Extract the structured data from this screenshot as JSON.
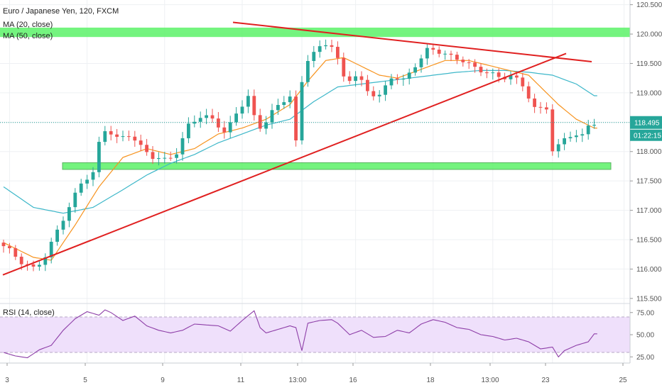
{
  "legend": {
    "main": "Euro / Japanese Yen, 120, FXCM",
    "ma20": "MA (20, close)",
    "ma50": "MA (50, close)",
    "rsi": "RSI (14, close)"
  },
  "price_tag": {
    "price": "118.495",
    "countdown": "01:22:15"
  },
  "colors": {
    "up": "#26a69a",
    "down": "#ef5350",
    "ma20": "#f7931e",
    "ma50": "#3db7c9",
    "rsi": "#8e3fa8",
    "rsi_band": "#efe0fb",
    "zone": "#5cf268",
    "trend": "#e02020"
  },
  "chart_data": [
    {
      "type": "candlestick",
      "title": "Euro / Japanese Yen, 120, FXCM",
      "ylim": [
        115.45,
        120.58
      ],
      "y_ticks": [
        "115.500",
        "116.000",
        "116.500",
        "117.000",
        "117.500",
        "118.000",
        "118.500",
        "119.000",
        "119.500",
        "120.000",
        "120.500"
      ],
      "x_ticks": [
        "3",
        "5",
        "9",
        "11",
        "13:00",
        "16",
        "18",
        "13:00",
        "23",
        "25"
      ],
      "last_price": 118.495,
      "support_zone": [
        117.72,
        117.81
      ],
      "resistance_zone": [
        119.95,
        120.11
      ],
      "trend_lines": [
        {
          "name": "descending",
          "from": [
            120.2
          ],
          "to": [
            119.53
          ]
        },
        {
          "name": "ascending",
          "from": [
            115.9
          ],
          "to": [
            119.67
          ]
        }
      ],
      "close_path": [
        [
          0,
          116.45
        ],
        [
          2,
          116.3
        ],
        [
          4,
          116.1
        ],
        [
          6,
          116.0
        ],
        [
          8,
          116.25
        ],
        [
          10,
          116.7
        ],
        [
          12,
          117.1
        ],
        [
          14,
          117.5
        ],
        [
          16,
          117.65
        ],
        [
          17,
          118.25
        ],
        [
          18,
          118.4
        ],
        [
          20,
          118.2
        ],
        [
          22,
          118.3
        ],
        [
          24,
          118.05
        ],
        [
          26,
          117.9
        ],
        [
          28,
          117.85
        ],
        [
          30,
          118.0
        ],
        [
          32,
          118.5
        ],
        [
          34,
          118.6
        ],
        [
          36,
          118.55
        ],
        [
          38,
          118.3
        ],
        [
          40,
          118.7
        ],
        [
          42,
          118.95
        ],
        [
          43,
          118.5
        ],
        [
          44,
          118.4
        ],
        [
          46,
          118.7
        ],
        [
          48,
          118.9
        ],
        [
          49,
          118.95
        ],
        [
          50,
          117.95
        ],
        [
          51,
          119.5
        ],
        [
          53,
          119.7
        ],
        [
          55,
          119.85
        ],
        [
          56,
          119.8
        ],
        [
          58,
          119.2
        ],
        [
          60,
          119.3
        ],
        [
          62,
          119.0
        ],
        [
          64,
          118.95
        ],
        [
          66,
          119.3
        ],
        [
          68,
          119.2
        ],
        [
          70,
          119.5
        ],
        [
          72,
          119.75
        ],
        [
          74,
          119.7
        ],
        [
          76,
          119.6
        ],
        [
          78,
          119.55
        ],
        [
          80,
          119.4
        ],
        [
          82,
          119.35
        ],
        [
          84,
          119.25
        ],
        [
          86,
          119.3
        ],
        [
          88,
          119.1
        ],
        [
          90,
          118.7
        ],
        [
          92,
          118.75
        ],
        [
          93,
          117.85
        ],
        [
          94,
          118.15
        ],
        [
          96,
          118.3
        ],
        [
          98,
          118.25
        ],
        [
          99,
          118.495
        ]
      ],
      "ma20_path": [
        [
          0,
          116.45
        ],
        [
          5,
          116.2
        ],
        [
          8,
          116.15
        ],
        [
          12,
          116.75
        ],
        [
          16,
          117.4
        ],
        [
          20,
          117.9
        ],
        [
          24,
          118.05
        ],
        [
          28,
          117.95
        ],
        [
          32,
          118.05
        ],
        [
          36,
          118.3
        ],
        [
          40,
          118.4
        ],
        [
          44,
          118.55
        ],
        [
          48,
          118.8
        ],
        [
          51,
          119.2
        ],
        [
          54,
          119.55
        ],
        [
          57,
          119.6
        ],
        [
          60,
          119.45
        ],
        [
          63,
          119.3
        ],
        [
          66,
          119.25
        ],
        [
          70,
          119.4
        ],
        [
          74,
          119.55
        ],
        [
          78,
          119.55
        ],
        [
          82,
          119.45
        ],
        [
          86,
          119.35
        ],
        [
          88,
          119.3
        ],
        [
          90,
          119.1
        ],
        [
          93,
          118.8
        ],
        [
          96,
          118.55
        ],
        [
          99,
          118.4
        ]
      ],
      "ma50_path": [
        [
          0,
          117.4
        ],
        [
          5,
          117.05
        ],
        [
          10,
          116.95
        ],
        [
          15,
          117.05
        ],
        [
          20,
          117.35
        ],
        [
          24,
          117.6
        ],
        [
          28,
          117.8
        ],
        [
          32,
          117.95
        ],
        [
          36,
          118.15
        ],
        [
          40,
          118.3
        ],
        [
          44,
          118.45
        ],
        [
          48,
          118.55
        ],
        [
          52,
          118.85
        ],
        [
          56,
          119.1
        ],
        [
          60,
          119.15
        ],
        [
          64,
          119.2
        ],
        [
          68,
          119.25
        ],
        [
          72,
          119.3
        ],
        [
          76,
          119.35
        ],
        [
          80,
          119.38
        ],
        [
          84,
          119.38
        ],
        [
          88,
          119.35
        ],
        [
          92,
          119.3
        ],
        [
          96,
          119.15
        ],
        [
          99,
          118.95
        ]
      ]
    },
    {
      "type": "line",
      "title": "RSI (14, close)",
      "ylim": [
        18,
        82
      ],
      "y_ticks": [
        "25.00",
        "50.00",
        "75.00"
      ],
      "band": [
        30,
        70
      ],
      "values": [
        [
          0,
          30
        ],
        [
          2,
          26
        ],
        [
          4,
          24
        ],
        [
          6,
          33
        ],
        [
          8,
          38
        ],
        [
          10,
          55
        ],
        [
          12,
          68
        ],
        [
          14,
          76
        ],
        [
          16,
          72
        ],
        [
          17,
          78
        ],
        [
          18,
          75
        ],
        [
          20,
          66
        ],
        [
          22,
          71
        ],
        [
          24,
          60
        ],
        [
          26,
          55
        ],
        [
          28,
          52
        ],
        [
          30,
          55
        ],
        [
          32,
          62
        ],
        [
          34,
          61
        ],
        [
          36,
          60
        ],
        [
          38,
          54
        ],
        [
          40,
          66
        ],
        [
          42,
          77
        ],
        [
          43,
          58
        ],
        [
          44,
          52
        ],
        [
          46,
          56
        ],
        [
          48,
          60
        ],
        [
          49,
          58
        ],
        [
          50,
          32
        ],
        [
          51,
          63
        ],
        [
          53,
          66
        ],
        [
          55,
          67
        ],
        [
          56,
          63
        ],
        [
          58,
          50
        ],
        [
          60,
          55
        ],
        [
          62,
          47
        ],
        [
          64,
          48
        ],
        [
          66,
          55
        ],
        [
          68,
          52
        ],
        [
          70,
          62
        ],
        [
          72,
          67
        ],
        [
          74,
          64
        ],
        [
          76,
          58
        ],
        [
          78,
          56
        ],
        [
          80,
          50
        ],
        [
          82,
          48
        ],
        [
          84,
          44
        ],
        [
          86,
          46
        ],
        [
          88,
          42
        ],
        [
          90,
          34
        ],
        [
          92,
          36
        ],
        [
          93,
          25
        ],
        [
          94,
          32
        ],
        [
          96,
          38
        ],
        [
          98,
          42
        ],
        [
          99,
          51
        ]
      ]
    }
  ]
}
